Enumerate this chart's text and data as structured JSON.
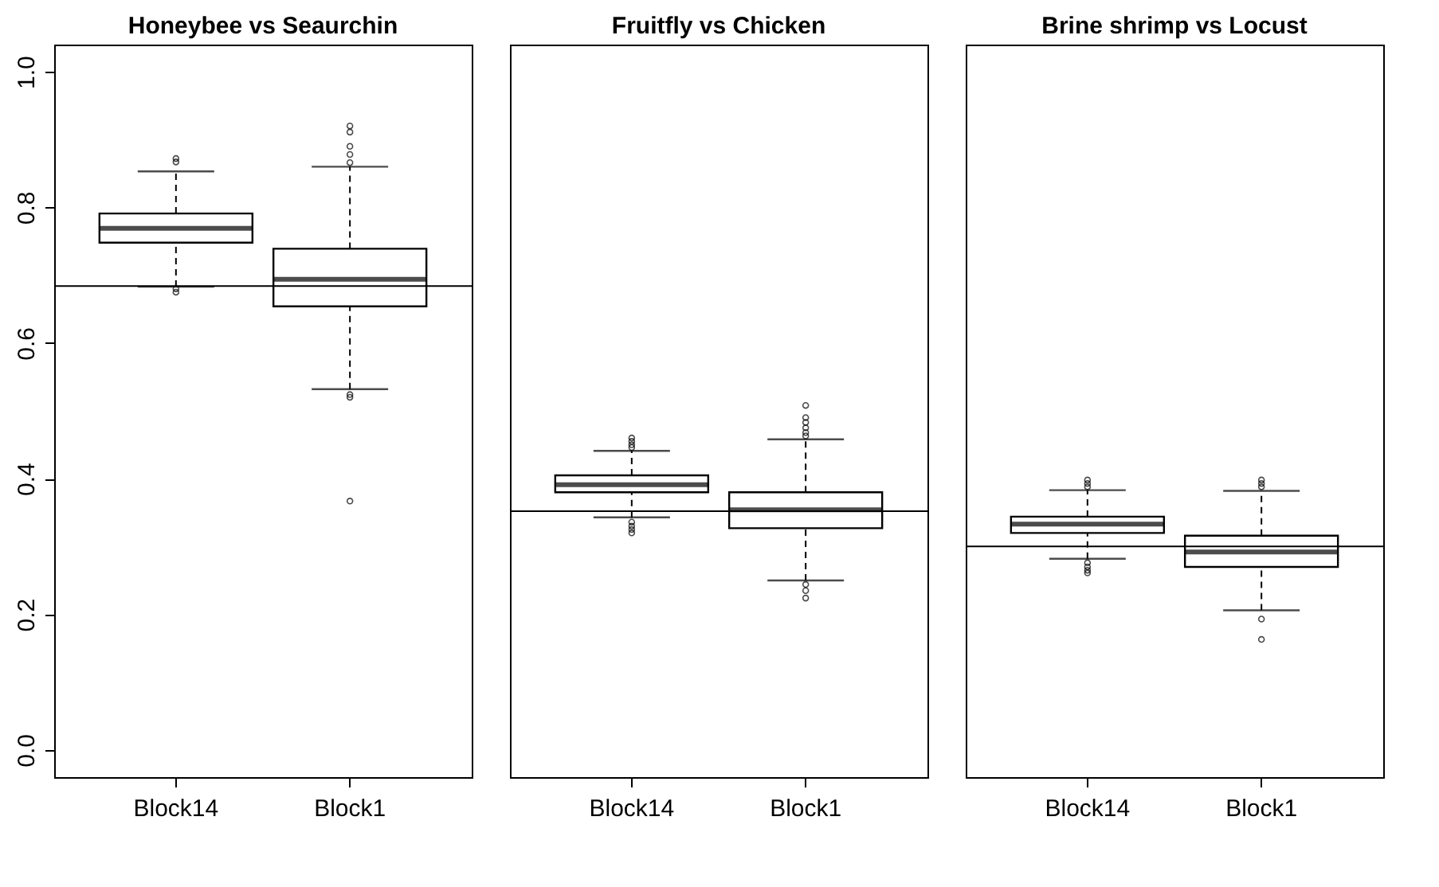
{
  "chart_data": [
    {
      "type": "box",
      "title": "Honeybee vs Seaurchin",
      "categories": [
        "Block14",
        "Block1"
      ],
      "ylim": [
        -0.04,
        1.04
      ],
      "yticks": [
        {
          "value": 0,
          "label": "0.0"
        },
        0.2,
        0.4,
        0.6,
        0.8,
        {
          "value": 1,
          "label": "1.0"
        }
      ],
      "grid": false,
      "boxes": [
        {
          "low": 0.683,
          "q1": 0.748,
          "median": 0.769,
          "q3": 0.791,
          "high": 0.853,
          "outliers": [
            0.872,
            0.867,
            0.68,
            0.675
          ]
        },
        {
          "low": 0.532,
          "q1": 0.654,
          "median": 0.694,
          "q3": 0.739,
          "high": 0.86,
          "outliers": [
            0.92,
            0.911,
            0.89,
            0.878,
            0.866,
            0.524,
            0.52,
            0.367
          ]
        }
      ],
      "ref_lines": [
        {
          "axis": "y",
          "value": 0.684,
          "label": null
        }
      ]
    },
    {
      "type": "box",
      "title": "Fruitfly vs Chicken",
      "categories": [
        "Block14",
        "Block1"
      ],
      "ylim": [
        -0.04,
        1.04
      ],
      "tick_labels": "x",
      "grid": false,
      "boxes": [
        {
          "low": 0.343,
          "q1": 0.38,
          "median": 0.391,
          "q3": 0.405,
          "high": 0.441,
          "outliers": [
            0.46,
            0.455,
            0.45,
            0.446,
            0.336,
            0.33,
            0.325,
            0.32
          ]
        },
        {
          "low": 0.25,
          "q1": 0.327,
          "median": 0.354,
          "q3": 0.38,
          "high": 0.458,
          "outliers": [
            0.508,
            0.49,
            0.483,
            0.475,
            0.468,
            0.463,
            0.244,
            0.235,
            0.224
          ]
        }
      ],
      "ref_lines": [
        {
          "axis": "y",
          "value": 0.352,
          "label": null
        }
      ]
    },
    {
      "type": "box",
      "title": "Brine shrimp vs Locust",
      "categories": [
        "Block14",
        "Block1"
      ],
      "ylim": [
        -0.04,
        1.04
      ],
      "tick_labels": "x",
      "grid": false,
      "boxes": [
        {
          "low": 0.282,
          "q1": 0.32,
          "median": 0.333,
          "q3": 0.344,
          "high": 0.383,
          "outliers": [
            0.398,
            0.393,
            0.388,
            0.276,
            0.27,
            0.265,
            0.261
          ]
        },
        {
          "low": 0.206,
          "q1": 0.27,
          "median": 0.292,
          "q3": 0.316,
          "high": 0.382,
          "outliers": [
            0.398,
            0.393,
            0.388,
            0.193,
            0.163
          ]
        }
      ],
      "ref_lines": [
        {
          "axis": "y",
          "value": 0.3,
          "label": null
        }
      ]
    }
  ]
}
